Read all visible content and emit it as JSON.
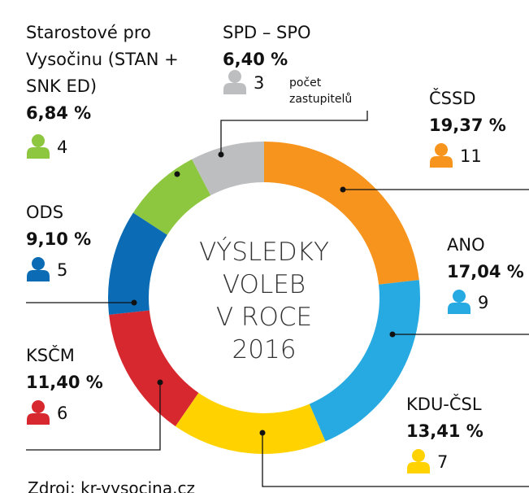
{
  "chart_data": {
    "type": "pie",
    "donut": true,
    "title_lines": [
      "VÝSLEDKY",
      "VOLEB",
      "V ROCE",
      "2016"
    ],
    "seats_note_lines": [
      "počet",
      "zastupitelů"
    ],
    "source": "Zdroj: kr-vysocina.cz",
    "categories": [
      "ČSSD",
      "ANO",
      "KDU-ČSL",
      "KSČM",
      "ODS",
      "Starostové pro Vysočinu (STAN + SNK ED)",
      "SPD – SPO"
    ],
    "values": [
      19.37,
      17.04,
      13.41,
      11.4,
      9.1,
      6.84,
      6.4
    ],
    "value_labels": [
      "19,37 %",
      "17,04 %",
      "13,41 %",
      "11,40 %",
      "9,10 %",
      "6,84 %",
      "6,40 %"
    ],
    "seats": [
      11,
      9,
      7,
      6,
      5,
      4,
      3
    ],
    "colors": [
      "#f7941d",
      "#27aae1",
      "#ffd200",
      "#d7282f",
      "#0b6cb5",
      "#8dc63f",
      "#bcbec0"
    ]
  }
}
